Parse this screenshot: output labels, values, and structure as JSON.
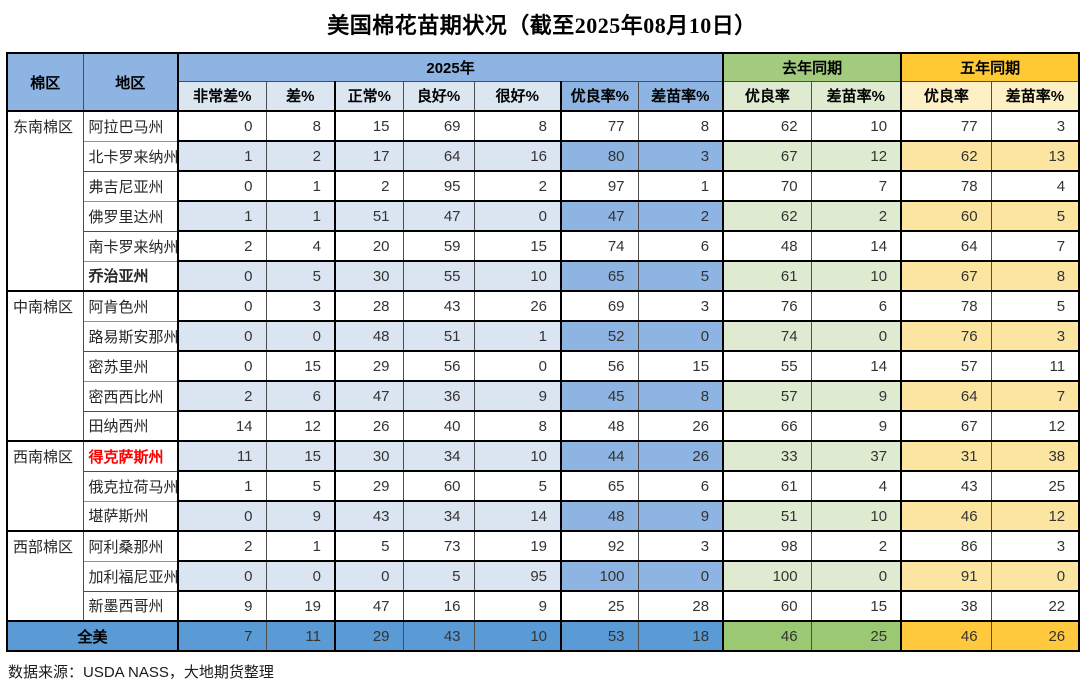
{
  "title": "美国棉花苗期状况（截至2025年08月10日）",
  "footer": {
    "source_note": "数据来源：USDA NASS，大地期货整理"
  },
  "colors": {
    "header_blue": "#8DB4E2",
    "sub_blue_light": "#DCE6F1",
    "stripe_blue_light": "#DBE5F1",
    "stripe_blue_medium": "#8DB4E2",
    "header_green": "#A2CB7D",
    "sub_green_light": "#DEEBD1",
    "header_gold": "#FFC933",
    "sub_gold_light": "#FDF0C5",
    "stripe_gold_light": "#FBE5A1",
    "total_blue": "#5B9BD5",
    "total_green": "#9AC873",
    "total_gold": "#FFC93D",
    "highlight_red": "#FF0000"
  },
  "table": {
    "header": {
      "region_group": "棉区",
      "region": "地区",
      "group_2025": "2025年",
      "group_last_year": "去年同期",
      "group_five_year": "五年同期",
      "sub_2025": [
        "非常差%",
        "差%",
        "正常%",
        "良好%",
        "很好%",
        "优良率%",
        "差苗率%"
      ],
      "sub_last_year": [
        "优良率",
        "差苗率%"
      ],
      "sub_five_year": [
        "优良率",
        "差苗率%"
      ]
    },
    "groups": [
      {
        "name": "东南棉区",
        "rows": [
          {
            "state": "阿拉巴马州",
            "values": [
              0,
              8,
              15,
              69,
              8,
              77,
              8,
              62,
              10,
              77,
              3
            ]
          },
          {
            "state": "北卡罗来纳州",
            "values": [
              1,
              2,
              17,
              64,
              16,
              80,
              3,
              67,
              12,
              62,
              13
            ]
          },
          {
            "state": "弗吉尼亚州",
            "values": [
              0,
              1,
              2,
              95,
              2,
              97,
              1,
              70,
              7,
              78,
              4
            ]
          },
          {
            "state": "佛罗里达州",
            "values": [
              1,
              1,
              51,
              47,
              0,
              47,
              2,
              62,
              2,
              60,
              5
            ]
          },
          {
            "state": "南卡罗来纳州",
            "values": [
              2,
              4,
              20,
              59,
              15,
              74,
              6,
              48,
              14,
              64,
              7
            ]
          },
          {
            "state": "乔治亚州",
            "bold": true,
            "values": [
              0,
              5,
              30,
              55,
              10,
              65,
              5,
              61,
              10,
              67,
              8
            ]
          }
        ]
      },
      {
        "name": "中南棉区",
        "rows": [
          {
            "state": "阿肯色州",
            "values": [
              0,
              3,
              28,
              43,
              26,
              69,
              3,
              76,
              6,
              78,
              5
            ]
          },
          {
            "state": "路易斯安那州",
            "values": [
              0,
              0,
              48,
              51,
              1,
              52,
              0,
              74,
              0,
              76,
              3
            ]
          },
          {
            "state": "密苏里州",
            "values": [
              0,
              15,
              29,
              56,
              0,
              56,
              15,
              55,
              14,
              57,
              11
            ]
          },
          {
            "state": "密西西比州",
            "values": [
              2,
              6,
              47,
              36,
              9,
              45,
              8,
              57,
              9,
              64,
              7
            ]
          },
          {
            "state": "田纳西州",
            "values": [
              14,
              12,
              26,
              40,
              8,
              48,
              26,
              66,
              9,
              67,
              12
            ]
          }
        ]
      },
      {
        "name": "西南棉区",
        "rows": [
          {
            "state": "得克萨斯州",
            "bold": true,
            "text_color": "#FF0000",
            "values": [
              11,
              15,
              30,
              34,
              10,
              44,
              26,
              33,
              37,
              31,
              38
            ]
          },
          {
            "state": "俄克拉荷马州",
            "values": [
              1,
              5,
              29,
              60,
              5,
              65,
              6,
              61,
              4,
              43,
              25
            ]
          },
          {
            "state": "堪萨斯州",
            "values": [
              0,
              9,
              43,
              34,
              14,
              48,
              9,
              51,
              10,
              46,
              12
            ]
          }
        ]
      },
      {
        "name": "西部棉区",
        "rows": [
          {
            "state": "阿利桑那州",
            "values": [
              2,
              1,
              5,
              73,
              19,
              92,
              3,
              98,
              2,
              86,
              3
            ]
          },
          {
            "state": "加利福尼亚州",
            "values": [
              0,
              0,
              0,
              5,
              95,
              100,
              0,
              100,
              0,
              91,
              0
            ]
          },
          {
            "state": "新墨西哥州",
            "values": [
              9,
              19,
              47,
              16,
              9,
              25,
              28,
              60,
              15,
              38,
              22
            ]
          }
        ]
      }
    ],
    "total_row": {
      "label": "全美",
      "values": [
        7,
        11,
        29,
        43,
        10,
        53,
        18,
        46,
        25,
        46,
        26
      ]
    }
  }
}
